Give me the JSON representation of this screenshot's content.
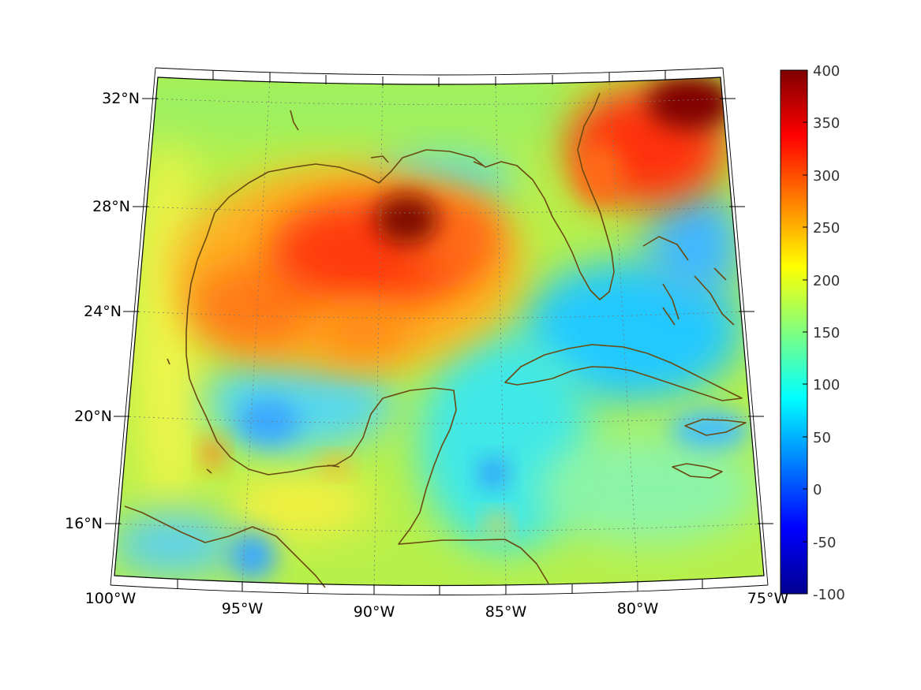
{
  "map": {
    "lon_labels": [
      "100°W",
      "95°W",
      "90°W",
      "85°W",
      "80°W",
      "75°W"
    ],
    "lat_labels": [
      "32°N",
      "28°N",
      "24°N",
      "20°N",
      "16°N"
    ],
    "colors": {
      "land_outline": "#6b4a12",
      "frame": "#000000",
      "grid": "#7a7a7a"
    }
  },
  "colorbar": {
    "ticks": [
      "400",
      "350",
      "300",
      "250",
      "200",
      "150",
      "100",
      "50",
      "0",
      "-50",
      "-100"
    ],
    "range": [
      -100,
      400
    ],
    "colormap": "jet"
  }
}
